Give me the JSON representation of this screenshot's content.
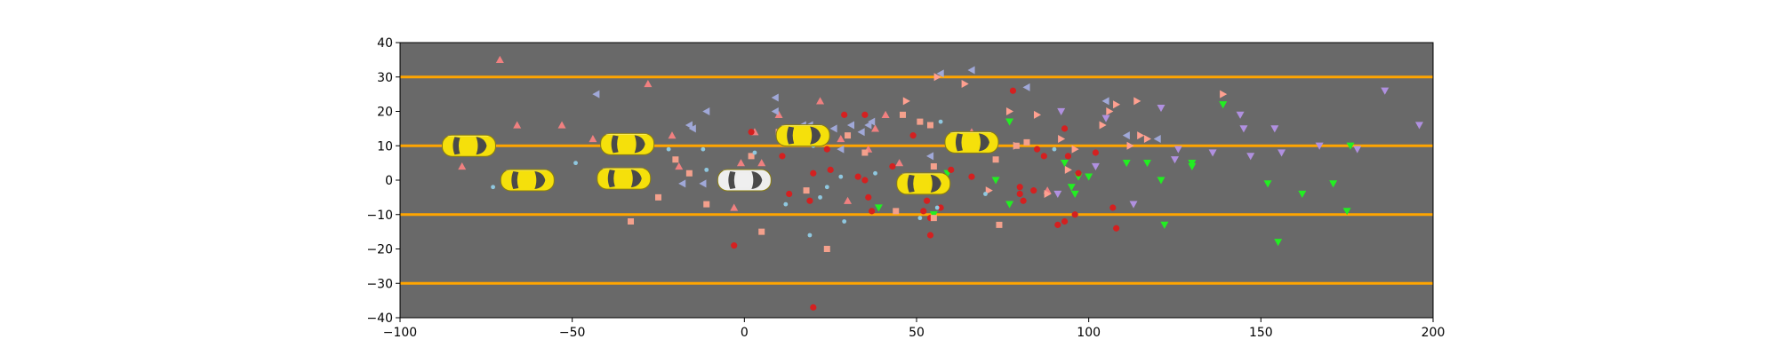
{
  "chart_data": {
    "type": "scatter",
    "title": "",
    "xlabel": "",
    "ylabel": "",
    "xlim": [
      -100,
      200
    ],
    "ylim": [
      -40,
      40
    ],
    "xticks": [
      -100,
      -50,
      0,
      50,
      100,
      150,
      200
    ],
    "yticks": [
      -40,
      -30,
      -20,
      -10,
      0,
      10,
      20,
      30,
      40
    ],
    "grid": false,
    "background_color": "#696969",
    "lane_line_color": "#FFA500",
    "lane_lines_y": [
      -30,
      -10,
      10,
      30
    ],
    "vehicles": [
      {
        "x": -80,
        "y": 10,
        "color": "#F5E00B"
      },
      {
        "x": -63,
        "y": 0,
        "color": "#F5E00B"
      },
      {
        "x": -34,
        "y": 10.5,
        "color": "#F5E00B"
      },
      {
        "x": -35,
        "y": 0.5,
        "color": "#F5E00B"
      },
      {
        "x": 17,
        "y": 13,
        "color": "#F5E00B"
      },
      {
        "x": 0,
        "y": 0,
        "color": "#EEEEEE"
      },
      {
        "x": 52,
        "y": -1,
        "color": "#F5E00B"
      },
      {
        "x": 66,
        "y": 11,
        "color": "#F5E00B"
      }
    ],
    "series": [
      {
        "marker": "triangle-up",
        "color": "#F08080",
        "points": [
          [
            -71,
            35
          ],
          [
            -66,
            16
          ],
          [
            -53,
            16
          ],
          [
            -44,
            12
          ],
          [
            -28,
            28
          ],
          [
            -21,
            13
          ],
          [
            -19,
            4
          ],
          [
            -3,
            -8
          ],
          [
            -1,
            5
          ],
          [
            3,
            14
          ],
          [
            5,
            5
          ],
          [
            10,
            19
          ],
          [
            22,
            23
          ],
          [
            28,
            12
          ],
          [
            30,
            -6
          ],
          [
            36,
            9
          ],
          [
            38,
            15
          ],
          [
            41,
            19
          ],
          [
            45,
            5
          ],
          [
            66,
            14
          ],
          [
            88,
            -3
          ],
          [
            -82,
            4
          ]
        ]
      },
      {
        "marker": "triangle-left",
        "color": "#A0A8D8",
        "points": [
          [
            -43,
            25
          ],
          [
            -16,
            16
          ],
          [
            -15,
            15
          ],
          [
            -11,
            20
          ],
          [
            -12,
            -1
          ],
          [
            -18,
            -1
          ],
          [
            9,
            24
          ],
          [
            9,
            20
          ],
          [
            17,
            16
          ],
          [
            19,
            16
          ],
          [
            26,
            15
          ],
          [
            28,
            9
          ],
          [
            31,
            16
          ],
          [
            34,
            14
          ],
          [
            36,
            16
          ],
          [
            37,
            17
          ],
          [
            54,
            7
          ],
          [
            57,
            31
          ],
          [
            66,
            32
          ],
          [
            68,
            9
          ],
          [
            82,
            27
          ],
          [
            105,
            23
          ],
          [
            111,
            13
          ],
          [
            120,
            12
          ]
        ]
      },
      {
        "marker": "triangle-right",
        "color": "#FFA090",
        "points": [
          [
            47,
            23
          ],
          [
            56,
            30
          ],
          [
            64,
            28
          ],
          [
            77,
            20
          ],
          [
            85,
            19
          ],
          [
            92,
            12
          ],
          [
            94,
            3
          ],
          [
            96,
            9
          ],
          [
            104,
            16
          ],
          [
            106,
            20
          ],
          [
            108,
            22
          ],
          [
            112,
            10
          ],
          [
            114,
            23
          ],
          [
            115,
            13
          ],
          [
            117,
            12
          ],
          [
            139,
            25
          ],
          [
            71,
            -3
          ],
          [
            88,
            -4
          ],
          [
            79,
            10
          ]
        ]
      },
      {
        "marker": "triangle-down",
        "color": "#B090E0",
        "points": [
          [
            92,
            20
          ],
          [
            105,
            18
          ],
          [
            113,
            -7
          ],
          [
            121,
            21
          ],
          [
            125,
            6
          ],
          [
            126,
            9
          ],
          [
            136,
            8
          ],
          [
            144,
            19
          ],
          [
            145,
            15
          ],
          [
            147,
            7
          ],
          [
            154,
            15
          ],
          [
            156,
            8
          ],
          [
            167,
            10
          ],
          [
            178,
            9
          ],
          [
            186,
            26
          ],
          [
            196,
            16
          ],
          [
            91,
            -4
          ],
          [
            102,
            4
          ]
        ]
      },
      {
        "marker": "triangle-down",
        "color": "#22EE22",
        "points": [
          [
            39,
            -8
          ],
          [
            55,
            -10
          ],
          [
            59,
            2
          ],
          [
            73,
            0
          ],
          [
            77,
            -7
          ],
          [
            77,
            17
          ],
          [
            93,
            5
          ],
          [
            95,
            -2
          ],
          [
            96,
            -4
          ],
          [
            97,
            1
          ],
          [
            100,
            1
          ],
          [
            111,
            5
          ],
          [
            117,
            5
          ],
          [
            121,
            0
          ],
          [
            122,
            -13
          ],
          [
            130,
            5
          ],
          [
            130,
            4
          ],
          [
            139,
            22
          ],
          [
            152,
            -1
          ],
          [
            155,
            -18
          ],
          [
            162,
            -4
          ],
          [
            171,
            -1
          ],
          [
            175,
            -9
          ],
          [
            176,
            10
          ]
        ]
      },
      {
        "marker": "circle",
        "color": "#D42020",
        "points": [
          [
            -3,
            -19
          ],
          [
            2,
            14
          ],
          [
            11,
            7
          ],
          [
            13,
            -4
          ],
          [
            19,
            -6
          ],
          [
            20,
            -37
          ],
          [
            20,
            2
          ],
          [
            24,
            9
          ],
          [
            25,
            3
          ],
          [
            29,
            19
          ],
          [
            33,
            1
          ],
          [
            35,
            0
          ],
          [
            35,
            19
          ],
          [
            36,
            -5
          ],
          [
            37,
            -9
          ],
          [
            43,
            4
          ],
          [
            49,
            13
          ],
          [
            52,
            -9
          ],
          [
            53,
            -6
          ],
          [
            54,
            -11
          ],
          [
            54,
            -16
          ],
          [
            55,
            1
          ],
          [
            57,
            -8
          ],
          [
            60,
            3
          ],
          [
            66,
            1
          ],
          [
            71,
            13
          ],
          [
            78,
            26
          ],
          [
            80,
            -2
          ],
          [
            80,
            -4
          ],
          [
            81,
            -6
          ],
          [
            84,
            -3
          ],
          [
            85,
            9
          ],
          [
            87,
            7
          ],
          [
            91,
            -13
          ],
          [
            93,
            15
          ],
          [
            93,
            -12
          ],
          [
            94,
            7
          ],
          [
            96,
            -10
          ],
          [
            97,
            2
          ],
          [
            102,
            8
          ],
          [
            107,
            -8
          ],
          [
            108,
            -14
          ],
          [
            -2,
            -1
          ]
        ]
      },
      {
        "marker": "square",
        "color": "#F4A08C",
        "points": [
          [
            -33,
            -12
          ],
          [
            -25,
            -5
          ],
          [
            -20,
            6
          ],
          [
            -11,
            -7
          ],
          [
            2,
            7
          ],
          [
            5,
            -15
          ],
          [
            10,
            14
          ],
          [
            18,
            -3
          ],
          [
            24,
            -20
          ],
          [
            30,
            13
          ],
          [
            35,
            8
          ],
          [
            44,
            -9
          ],
          [
            46,
            19
          ],
          [
            51,
            17
          ],
          [
            54,
            16
          ],
          [
            55,
            4
          ],
          [
            55,
            -11
          ],
          [
            73,
            6
          ],
          [
            74,
            -13
          ],
          [
            79,
            10
          ],
          [
            82,
            11
          ],
          [
            -16,
            2
          ]
        ]
      },
      {
        "marker": "circle-small",
        "color": "#8FC8E0",
        "points": [
          [
            -73,
            -2
          ],
          [
            -49,
            5
          ],
          [
            -22,
            9
          ],
          [
            -12,
            9
          ],
          [
            -11,
            3
          ],
          [
            3,
            8
          ],
          [
            12,
            -7
          ],
          [
            19,
            -16
          ],
          [
            20,
            10
          ],
          [
            22,
            -5
          ],
          [
            24,
            -2
          ],
          [
            28,
            1
          ],
          [
            29,
            -12
          ],
          [
            38,
            2
          ],
          [
            51,
            -11
          ],
          [
            56,
            -8
          ],
          [
            57,
            17
          ],
          [
            70,
            -4
          ],
          [
            90,
            9
          ]
        ]
      }
    ]
  }
}
